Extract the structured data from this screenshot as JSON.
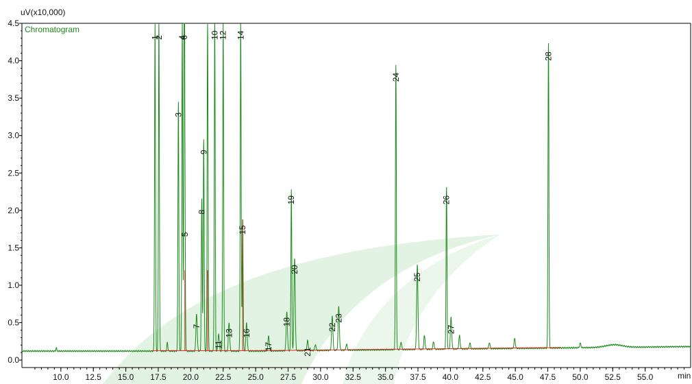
{
  "chart_data": {
    "type": "line",
    "title": "",
    "ylabel": "uV(x10,000)",
    "xlabel": "min",
    "legend": {
      "entries": [
        "Chromatogram"
      ],
      "placement": "top-left"
    },
    "xlim": [
      7.0,
      58.5
    ],
    "ylim": [
      -0.1,
      4.5
    ],
    "x_ticks": [
      10.0,
      12.5,
      15.0,
      17.5,
      20.0,
      22.5,
      25.0,
      27.5,
      30.0,
      32.5,
      35.0,
      37.5,
      40.0,
      42.5,
      45.0,
      47.5,
      50.0,
      52.5,
      55.0
    ],
    "x_tick_labels": [
      "10.0",
      "12.5",
      "15.0",
      "17.5",
      "20.0",
      "22.5",
      "25.0",
      "27.5",
      "30.0",
      "32.5",
      "35.0",
      "37.5",
      "40.0",
      "42.5",
      "45.0",
      "47.5",
      "50.0",
      "52.5",
      "55.0"
    ],
    "y_ticks": [
      0.0,
      0.5,
      1.0,
      1.5,
      2.0,
      2.5,
      3.0,
      3.5,
      4.0,
      4.5
    ],
    "y_tick_labels": [
      "0.0",
      "0.5",
      "1.0",
      "1.5",
      "2.0",
      "2.5",
      "3.0",
      "3.5",
      "4.0",
      "4.5"
    ],
    "grid": false,
    "colors": {
      "signal": "#1a8a1a",
      "baseline": "#e02020",
      "axis": "#000000",
      "watermark": "#e3f3e3"
    },
    "series": [
      {
        "name": "Chromatogram",
        "color": "#1a8a1a",
        "baseline": 0.12,
        "peaks": [
          {
            "label": "1",
            "rt": 17.25,
            "height": 4.5,
            "labeled": true
          },
          {
            "label": "2",
            "rt": 17.55,
            "height": 4.5,
            "labeled": true
          },
          {
            "label": "3",
            "rt": 19.05,
            "height": 3.45,
            "labeled": true
          },
          {
            "label": "4",
            "rt": 19.35,
            "height": 4.5,
            "labeled": true
          },
          {
            "label": "5",
            "rt": 19.55,
            "height": 1.85,
            "labeled": true
          },
          {
            "label": "6",
            "rt": 19.5,
            "height": 4.5,
            "labeled": true
          },
          {
            "label": "7",
            "rt": 20.45,
            "height": 0.62,
            "labeled": true
          },
          {
            "label": "8",
            "rt": 20.85,
            "height": 2.15,
            "labeled": true
          },
          {
            "label": "9",
            "rt": 21.0,
            "height": 2.95,
            "labeled": true
          },
          {
            "label": "",
            "rt": 21.3,
            "height": 4.5,
            "labeled": false
          },
          {
            "label": "10",
            "rt": 21.85,
            "height": 4.5,
            "labeled": true
          },
          {
            "label": "11",
            "rt": 22.15,
            "height": 0.35,
            "labeled": true
          },
          {
            "label": "12",
            "rt": 22.5,
            "height": 4.5,
            "labeled": true
          },
          {
            "label": "13",
            "rt": 22.95,
            "height": 0.5,
            "labeled": true
          },
          {
            "label": "14",
            "rt": 23.85,
            "height": 4.5,
            "labeled": true
          },
          {
            "label": "15",
            "rt": 24.0,
            "height": 1.88,
            "labeled": true
          },
          {
            "label": "16",
            "rt": 24.3,
            "height": 0.5,
            "labeled": true
          },
          {
            "label": "17",
            "rt": 26.0,
            "height": 0.32,
            "labeled": true
          },
          {
            "label": "18",
            "rt": 27.4,
            "height": 0.65,
            "labeled": true
          },
          {
            "label": "19",
            "rt": 27.75,
            "height": 2.28,
            "labeled": true
          },
          {
            "label": "20",
            "rt": 28.0,
            "height": 1.35,
            "labeled": true
          },
          {
            "label": "21",
            "rt": 29.0,
            "height": 0.25,
            "labeled": true
          },
          {
            "label": "",
            "rt": 29.6,
            "height": 0.2,
            "labeled": false
          },
          {
            "label": "22",
            "rt": 30.9,
            "height": 0.58,
            "labeled": true
          },
          {
            "label": "23",
            "rt": 31.4,
            "height": 0.7,
            "labeled": true
          },
          {
            "label": "",
            "rt": 32.0,
            "height": 0.2,
            "labeled": false
          },
          {
            "label": "24",
            "rt": 35.8,
            "height": 3.92,
            "labeled": true
          },
          {
            "label": "",
            "rt": 36.2,
            "height": 0.22,
            "labeled": false
          },
          {
            "label": "25",
            "rt": 37.45,
            "height": 1.25,
            "labeled": true
          },
          {
            "label": "",
            "rt": 38.0,
            "height": 0.3,
            "labeled": false
          },
          {
            "label": "",
            "rt": 38.7,
            "height": 0.22,
            "labeled": false
          },
          {
            "label": "26",
            "rt": 39.7,
            "height": 2.28,
            "labeled": true
          },
          {
            "label": "27",
            "rt": 40.05,
            "height": 0.55,
            "labeled": true
          },
          {
            "label": "",
            "rt": 40.7,
            "height": 0.3,
            "labeled": false
          },
          {
            "label": "",
            "rt": 41.5,
            "height": 0.2,
            "labeled": false
          },
          {
            "label": "",
            "rt": 43.0,
            "height": 0.2,
            "labeled": false
          },
          {
            "label": "",
            "rt": 44.95,
            "height": 0.25,
            "labeled": false
          },
          {
            "label": "28",
            "rt": 47.55,
            "height": 4.2,
            "labeled": true
          },
          {
            "label": "",
            "rt": 50.0,
            "height": 0.18,
            "labeled": false
          }
        ]
      }
    ]
  }
}
